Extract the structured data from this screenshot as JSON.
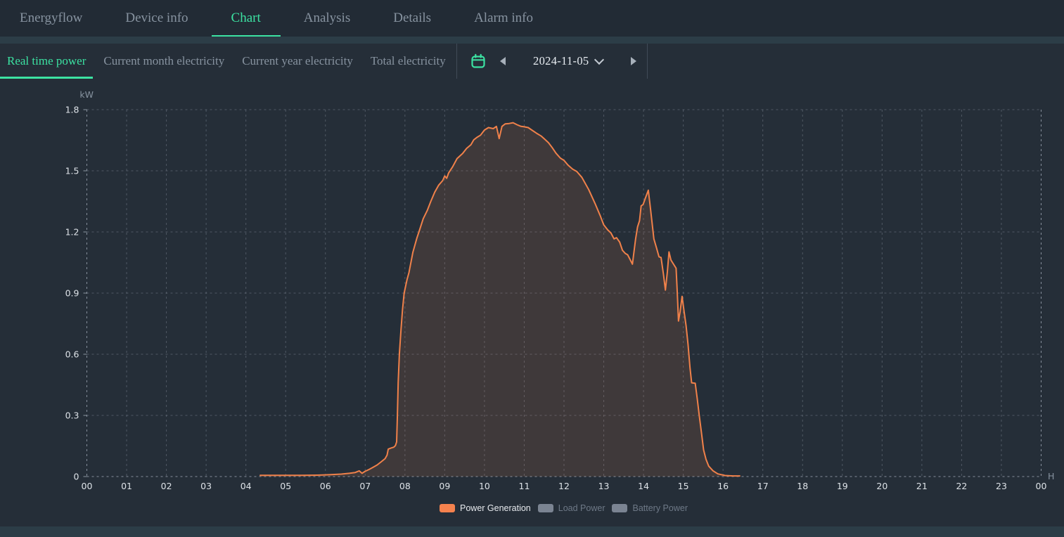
{
  "nav": {
    "tabs": [
      {
        "label": "Energyflow",
        "active": false
      },
      {
        "label": "Device info",
        "active": false
      },
      {
        "label": "Chart",
        "active": true
      },
      {
        "label": "Analysis",
        "active": false
      },
      {
        "label": "Details",
        "active": false
      },
      {
        "label": "Alarm info",
        "active": false
      }
    ]
  },
  "subbar": {
    "tabs": [
      {
        "label": "Real time power",
        "active": true
      },
      {
        "label": "Current month electricity",
        "active": false
      },
      {
        "label": "Current year electricity",
        "active": false
      },
      {
        "label": "Total electricity",
        "active": false
      }
    ],
    "datepicker": {
      "date": "2024-11-05",
      "calendar_icon": "calendar-icon",
      "prev_icon": "arrow-left-icon",
      "next_icon": "arrow-right-icon",
      "accent_color": "#3ce2a2"
    }
  },
  "colors": {
    "page_background": "#2c3d47",
    "nav_background": "#222b35",
    "panel_background": "#252e38",
    "active_tab_green": "#3ce2a2",
    "inactive_tab_text": "#8793a0",
    "line_orange": "#f0814a",
    "tick_label": "#dde2e7"
  },
  "chart_data": {
    "type": "area",
    "title": "",
    "ylabel": "kW",
    "xlabel": "H",
    "xlim": [
      0,
      24
    ],
    "ylim": [
      0,
      1.8
    ],
    "x_step": 1,
    "y_step": 0.3,
    "grid": "dashed",
    "legend_position": "bottom-center",
    "y_tick_labels": [
      "0",
      "0.3",
      "0.6",
      "0.9",
      "1.2",
      "1.5",
      "1.8"
    ],
    "x_tick_labels": [
      "00",
      "01",
      "02",
      "03",
      "04",
      "05",
      "06",
      "07",
      "08",
      "09",
      "10",
      "11",
      "12",
      "13",
      "14",
      "15",
      "16",
      "17",
      "18",
      "19",
      "20",
      "21",
      "22",
      "23",
      "00"
    ],
    "legend": [
      {
        "label": "Power Generation",
        "color": "#f5824e",
        "active": true
      },
      {
        "label": "Load Power",
        "color": "#7b8492",
        "active": false
      },
      {
        "label": "Battery Power",
        "color": "#7b8492",
        "active": false
      }
    ],
    "series": [
      {
        "name": "Power Generation",
        "color": "#f0814a",
        "fill": "rgba(240,129,74,0.13)",
        "x_unit": "hour",
        "y_unit": "kW",
        "points": [
          [
            4.36,
            0.006
          ],
          [
            4.6,
            0.006
          ],
          [
            5.0,
            0.006
          ],
          [
            5.4,
            0.006
          ],
          [
            5.8,
            0.007
          ],
          [
            6.1,
            0.009
          ],
          [
            6.4,
            0.012
          ],
          [
            6.6,
            0.016
          ],
          [
            6.75,
            0.02
          ],
          [
            6.85,
            0.028
          ],
          [
            6.92,
            0.016
          ],
          [
            7.0,
            0.026
          ],
          [
            7.1,
            0.035
          ],
          [
            7.2,
            0.046
          ],
          [
            7.3,
            0.057
          ],
          [
            7.4,
            0.072
          ],
          [
            7.5,
            0.088
          ],
          [
            7.55,
            0.105
          ],
          [
            7.58,
            0.135
          ],
          [
            7.65,
            0.14
          ],
          [
            7.72,
            0.144
          ],
          [
            7.76,
            0.152
          ],
          [
            7.79,
            0.17
          ],
          [
            7.81,
            0.3
          ],
          [
            7.83,
            0.46
          ],
          [
            7.86,
            0.6
          ],
          [
            7.9,
            0.72
          ],
          [
            7.94,
            0.82
          ],
          [
            7.98,
            0.9
          ],
          [
            8.05,
            0.965
          ],
          [
            8.1,
            1.0
          ],
          [
            8.2,
            1.1
          ],
          [
            8.3,
            1.17
          ],
          [
            8.36,
            1.205
          ],
          [
            8.46,
            1.265
          ],
          [
            8.56,
            1.305
          ],
          [
            8.65,
            1.35
          ],
          [
            8.75,
            1.395
          ],
          [
            8.85,
            1.43
          ],
          [
            8.95,
            1.452
          ],
          [
            9.0,
            1.475
          ],
          [
            9.05,
            1.463
          ],
          [
            9.1,
            1.49
          ],
          [
            9.2,
            1.52
          ],
          [
            9.31,
            1.56
          ],
          [
            9.45,
            1.585
          ],
          [
            9.55,
            1.61
          ],
          [
            9.66,
            1.628
          ],
          [
            9.73,
            1.652
          ],
          [
            9.82,
            1.665
          ],
          [
            9.9,
            1.675
          ],
          [
            10.0,
            1.7
          ],
          [
            10.1,
            1.712
          ],
          [
            10.22,
            1.707
          ],
          [
            10.3,
            1.718
          ],
          [
            10.37,
            1.658
          ],
          [
            10.44,
            1.718
          ],
          [
            10.52,
            1.73
          ],
          [
            10.62,
            1.732
          ],
          [
            10.72,
            1.736
          ],
          [
            10.82,
            1.726
          ],
          [
            10.92,
            1.718
          ],
          [
            11.0,
            1.716
          ],
          [
            11.1,
            1.712
          ],
          [
            11.19,
            1.7
          ],
          [
            11.31,
            1.684
          ],
          [
            11.43,
            1.67
          ],
          [
            11.5,
            1.658
          ],
          [
            11.61,
            1.638
          ],
          [
            11.7,
            1.615
          ],
          [
            11.8,
            1.586
          ],
          [
            11.91,
            1.562
          ],
          [
            12.0,
            1.551
          ],
          [
            12.1,
            1.528
          ],
          [
            12.22,
            1.508
          ],
          [
            12.32,
            1.497
          ],
          [
            12.45,
            1.468
          ],
          [
            12.62,
            1.408
          ],
          [
            12.78,
            1.34
          ],
          [
            12.91,
            1.28
          ],
          [
            13.0,
            1.235
          ],
          [
            13.1,
            1.21
          ],
          [
            13.18,
            1.195
          ],
          [
            13.26,
            1.166
          ],
          [
            13.32,
            1.172
          ],
          [
            13.4,
            1.15
          ],
          [
            13.47,
            1.11
          ],
          [
            13.54,
            1.095
          ],
          [
            13.6,
            1.088
          ],
          [
            13.67,
            1.062
          ],
          [
            13.72,
            1.042
          ],
          [
            13.8,
            1.165
          ],
          [
            13.85,
            1.225
          ],
          [
            13.9,
            1.255
          ],
          [
            13.94,
            1.328
          ],
          [
            13.99,
            1.335
          ],
          [
            14.04,
            1.362
          ],
          [
            14.12,
            1.405
          ],
          [
            14.18,
            1.305
          ],
          [
            14.26,
            1.166
          ],
          [
            14.33,
            1.12
          ],
          [
            14.39,
            1.078
          ],
          [
            14.44,
            1.075
          ],
          [
            14.5,
            0.993
          ],
          [
            14.55,
            0.915
          ],
          [
            14.6,
            1.005
          ],
          [
            14.64,
            1.102
          ],
          [
            14.69,
            1.062
          ],
          [
            14.76,
            1.04
          ],
          [
            14.82,
            1.022
          ],
          [
            14.85,
            0.901
          ],
          [
            14.88,
            0.763
          ],
          [
            14.92,
            0.809
          ],
          [
            14.97,
            0.884
          ],
          [
            15.02,
            0.809
          ],
          [
            15.07,
            0.74
          ],
          [
            15.12,
            0.648
          ],
          [
            15.17,
            0.533
          ],
          [
            15.21,
            0.46
          ],
          [
            15.3,
            0.458
          ],
          [
            15.35,
            0.384
          ],
          [
            15.4,
            0.303
          ],
          [
            15.46,
            0.211
          ],
          [
            15.51,
            0.131
          ],
          [
            15.57,
            0.085
          ],
          [
            15.64,
            0.051
          ],
          [
            15.75,
            0.028
          ],
          [
            15.87,
            0.013
          ],
          [
            16.05,
            0.005
          ],
          [
            16.25,
            0.003
          ],
          [
            16.42,
            0.003
          ]
        ]
      },
      {
        "name": "Load Power",
        "visible": false,
        "points": []
      },
      {
        "name": "Battery Power",
        "visible": false,
        "points": []
      }
    ]
  }
}
